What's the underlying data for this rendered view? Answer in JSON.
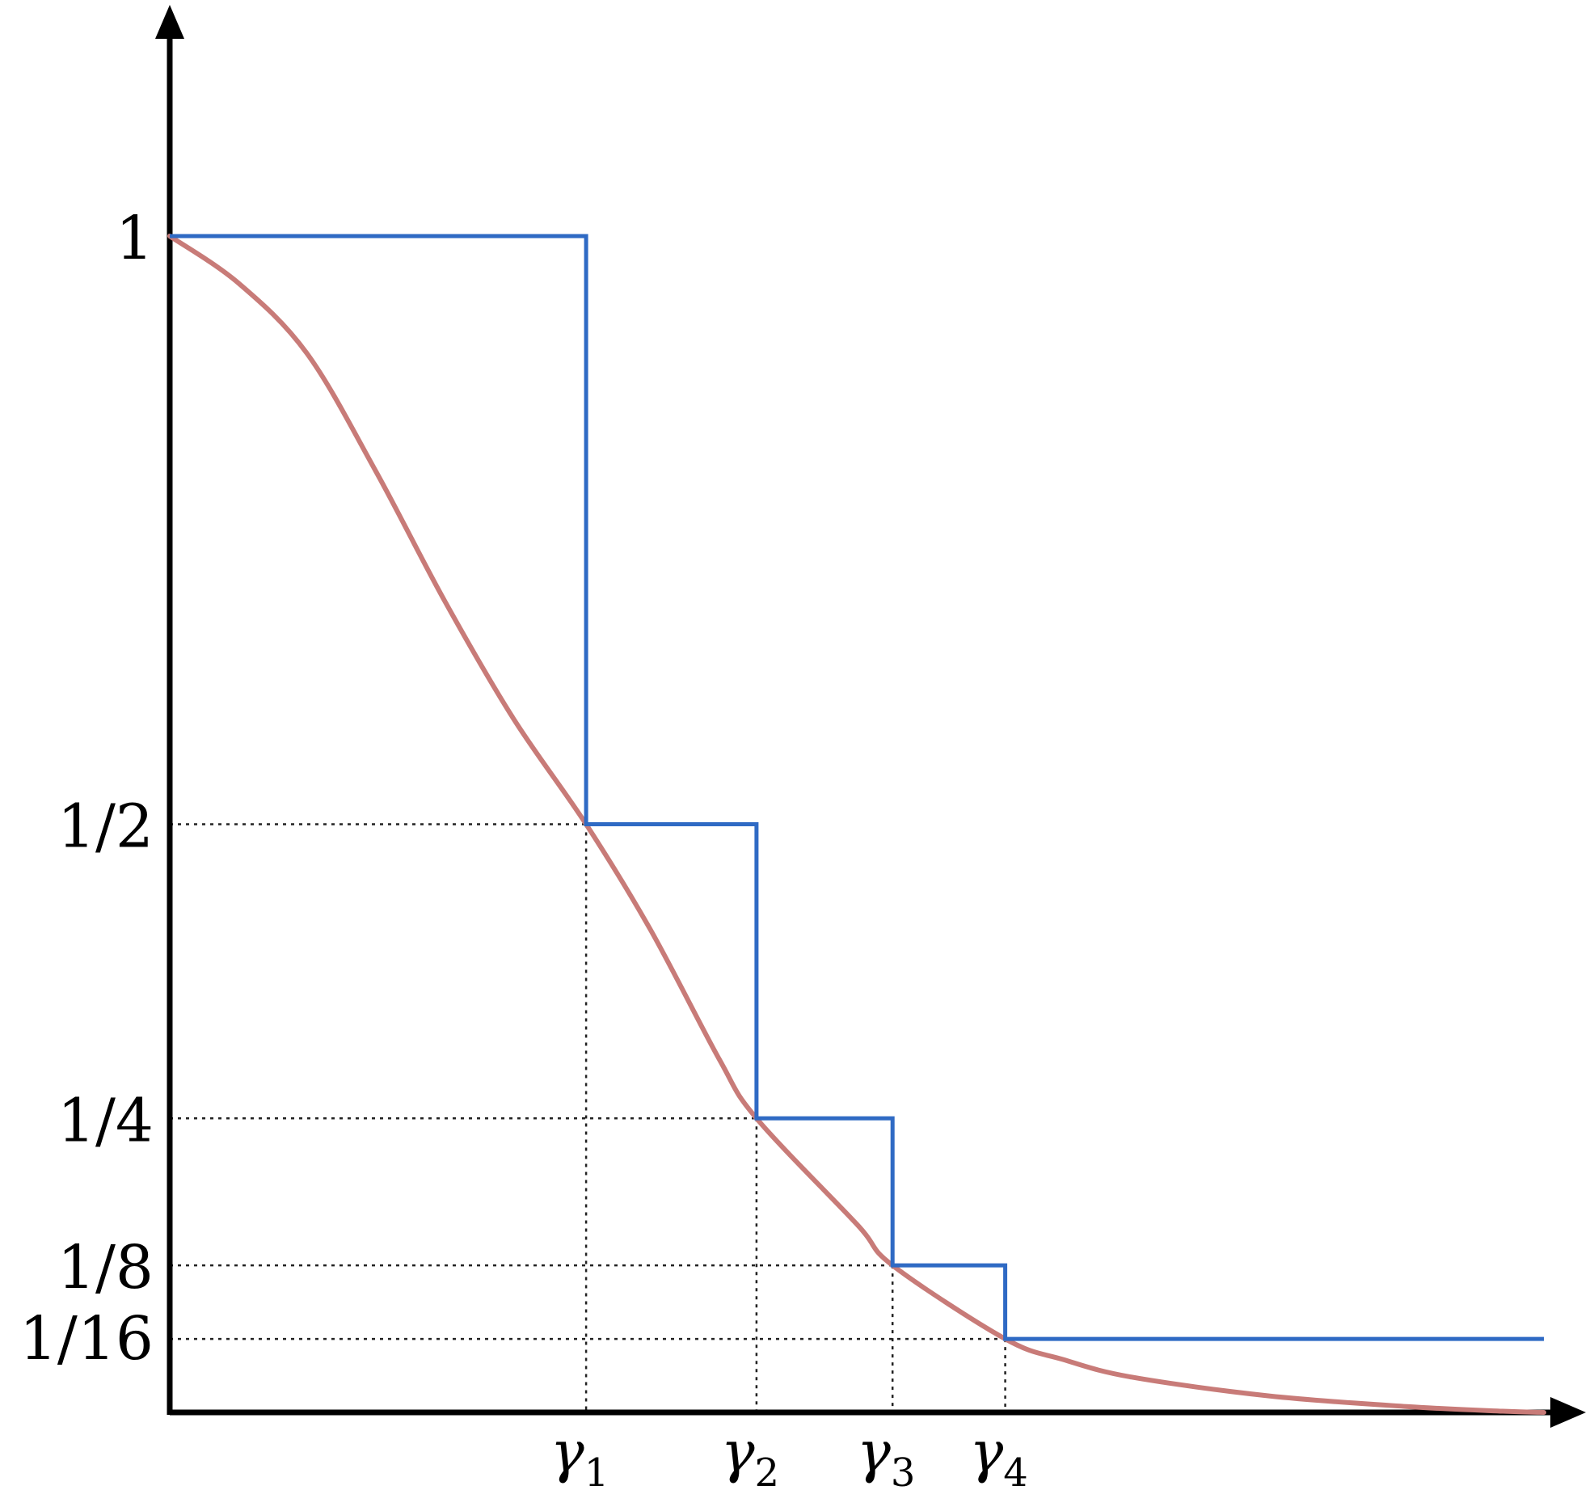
{
  "chart_data": {
    "type": "line",
    "title": "",
    "xlabel": "",
    "ylabel": "",
    "y_tick_labels": [
      {
        "value": 1,
        "label": "1"
      },
      {
        "value": 0.5,
        "label": "1/2"
      },
      {
        "value": 0.25,
        "label": "1/4"
      },
      {
        "value": 0.125,
        "label": "1/8"
      },
      {
        "value": 0.0625,
        "label": "1/16"
      }
    ],
    "x_tick_labels": [
      {
        "symbol": "γ",
        "subscript": "1"
      },
      {
        "symbol": "γ",
        "subscript": "2"
      },
      {
        "symbol": "γ",
        "subscript": "3"
      },
      {
        "symbol": "γ",
        "subscript": "4"
      }
    ],
    "x_tick_positions": [
      0.303,
      0.427,
      0.526,
      0.608
    ],
    "xlim": [
      0,
      1
    ],
    "ylim": [
      0,
      1
    ],
    "grid": false,
    "series": [
      {
        "kind": "smooth-curve",
        "color": "#c87b78",
        "x": [
          0,
          0.05,
          0.1,
          0.15,
          0.2,
          0.25,
          0.303,
          0.35,
          0.4,
          0.427,
          0.5,
          0.526,
          0.608,
          0.65,
          0.7,
          0.8,
          0.9,
          0.97,
          1.0
        ],
        "y": [
          1.0,
          0.96,
          0.9,
          0.8,
          0.69,
          0.59,
          0.5,
          0.41,
          0.3,
          0.25,
          0.16,
          0.125,
          0.0625,
          0.045,
          0.03,
          0.014,
          0.005,
          0.001,
          0.0
        ]
      },
      {
        "kind": "step",
        "color": "#2f6ac4",
        "x": [
          0,
          0.303,
          0.303,
          0.427,
          0.427,
          0.526,
          0.526,
          0.608,
          0.608,
          1.0
        ],
        "y": [
          1,
          1,
          0.5,
          0.5,
          0.25,
          0.25,
          0.125,
          0.125,
          0.0625,
          0.0625
        ]
      }
    ],
    "guides": "dotted lines from each y tick to the curve and from each γ down to the x axis"
  }
}
